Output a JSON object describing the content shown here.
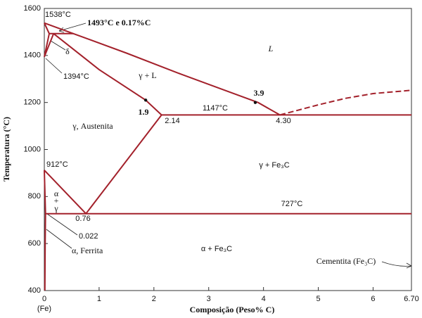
{
  "chart_data": {
    "type": "line",
    "xlabel": "Composição (Peso% C)",
    "ylabel": "Temperatura (°C)",
    "x_origin_label": "(Fe)",
    "xlim": [
      0,
      6.7
    ],
    "ylim": [
      400,
      1600
    ],
    "xticks": [
      0,
      1,
      2,
      3,
      4,
      5,
      6,
      {
        "value": 6.7,
        "label": "6.70"
      }
    ],
    "yticks": [
      400,
      600,
      800,
      1000,
      1200,
      1400,
      1600
    ],
    "series": [
      {
        "color": "#a3212b",
        "dashed": false,
        "x": [
          0,
          0.53,
          1.5,
          2.5,
          3.9,
          4.3
        ],
        "values": [
          1538,
          1493,
          1410,
          1320,
          1200,
          1147
        ]
      },
      {
        "color": "#a3212b",
        "dashed": false,
        "x": [
          0.17,
          1.0,
          1.85,
          2.14
        ],
        "values": [
          1493,
          1340,
          1210,
          1147
        ]
      },
      {
        "color": "#a3212b",
        "dashed": false,
        "x": [
          0.09,
          0.53
        ],
        "values": [
          1493,
          1493
        ]
      },
      {
        "color": "#a3212b",
        "dashed": false,
        "x": [
          0,
          0.09,
          0,
          0.17
        ],
        "values": [
          1538,
          1493,
          1394,
          1493
        ]
      },
      {
        "color": "#a3212b",
        "dashed": false,
        "x": [
          2.14,
          6.7
        ],
        "values": [
          1147,
          1147
        ]
      },
      {
        "color": "#a3212b",
        "dashed": false,
        "x": [
          0.76,
          2.14
        ],
        "values": [
          727,
          1147
        ]
      },
      {
        "color": "#a3212b",
        "dashed": false,
        "x": [
          0,
          0.76
        ],
        "values": [
          912,
          727
        ]
      },
      {
        "color": "#a3212b",
        "dashed": false,
        "x": [
          0,
          0.022,
          6.7
        ],
        "values": [
          912,
          727,
          727
        ]
      },
      {
        "color": "#a3212b",
        "dashed": false,
        "x": [
          0.022,
          0.015,
          0.01
        ],
        "values": [
          727,
          600,
          400
        ]
      },
      {
        "color": "#a3212b",
        "dashed": true,
        "x": [
          4.3,
          5.0,
          5.5,
          6.0,
          6.7
        ],
        "values": [
          1147,
          1190,
          1218,
          1238,
          1252
        ]
      }
    ],
    "points": {
      "color": "#111111",
      "x": [
        1.85,
        3.85
      ],
      "values": [
        1210,
        1200
      ]
    },
    "annotations": [
      "1538°C",
      "1493°C e 0.17%C",
      "δ",
      "1394°C",
      "L",
      "γ + L",
      "3.9",
      "1.9",
      "1147°C",
      "2.14",
      "4.30",
      "γ, Austenita",
      "912°C",
      "γ + Fe₃C",
      "727°C",
      "α",
      "+",
      "γ",
      "0.76",
      "0.022",
      "α, Ferrita",
      "α + Fe₃C",
      "Cementita (Fe₃C)"
    ]
  }
}
